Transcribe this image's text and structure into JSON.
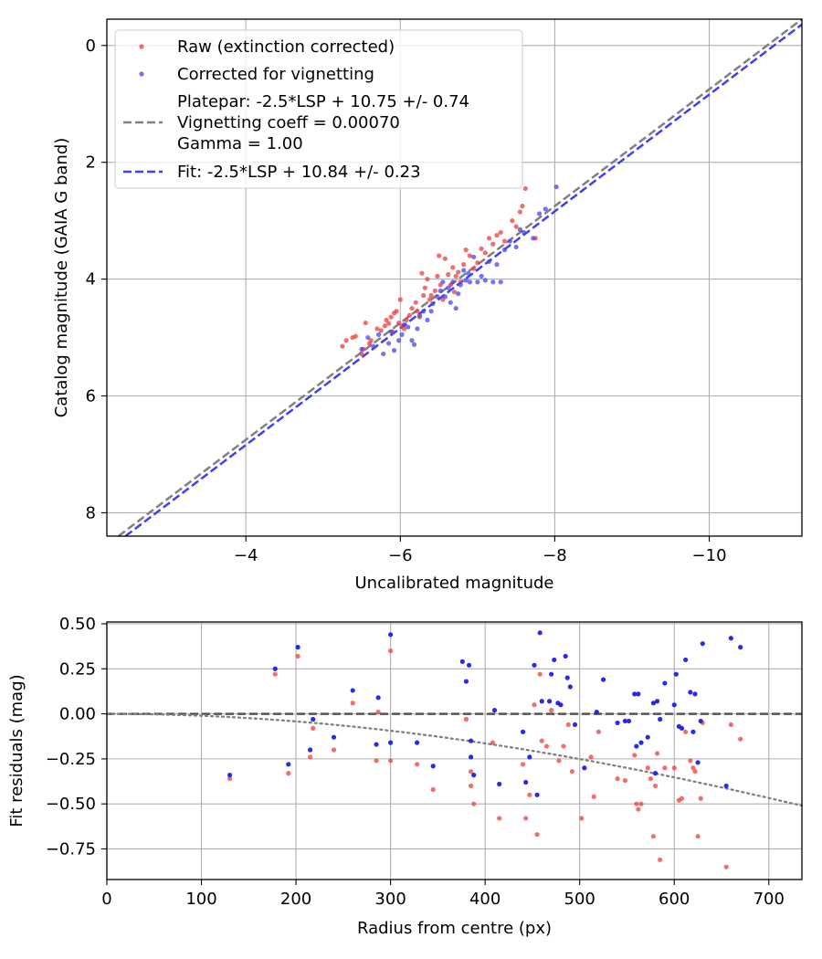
{
  "chart_data": [
    {
      "type": "scatter",
      "xlabel": "Uncalibrated magnitude",
      "ylabel": "Catalog magnitude (GAIA G band)",
      "xlim": [
        -2.2,
        -11.2
      ],
      "ylim": [
        8.4,
        -0.45
      ],
      "x_inverted": true,
      "y_inverted": true,
      "grid": true,
      "legend_position": "upper-left",
      "xticks": [
        -4,
        -6,
        -8,
        -10
      ],
      "yticks": [
        0,
        2,
        4,
        6,
        8
      ],
      "xtick_labels": [
        "−4",
        "−6",
        "−8",
        "−10"
      ],
      "ytick_labels": [
        "0",
        "2",
        "4",
        "6",
        "8"
      ],
      "legend": {
        "raw_label": "Raw (extinction corrected)",
        "corrected_label": "Corrected for vignetting",
        "platepar_line1": "Platepar: -2.5*LSP + 10.75 +/- 0.74",
        "platepar_line2": "Vignetting coeff = 0.00070",
        "platepar_line3": "Gamma = 1.00",
        "fit_label": "Fit: -2.5*LSP + 10.84 +/- 0.23"
      },
      "lines": [
        {
          "name": "Platepar",
          "slope": 1.0,
          "intercept": 10.75,
          "color": "#808080",
          "style": "dashed"
        },
        {
          "name": "Fit",
          "slope": 1.0,
          "intercept": 10.84,
          "color": "#3f3ff5",
          "style": "dashed"
        }
      ],
      "series": [
        {
          "name": "Raw (extinction corrected)",
          "color": "#f03c3c",
          "points": [
            [
              -5.25,
              5.15
            ],
            [
              -5.3,
              5.05
            ],
            [
              -5.38,
              5.0
            ],
            [
              -5.42,
              4.98
            ],
            [
              -5.5,
              5.28
            ],
            [
              -5.52,
              5.2
            ],
            [
              -5.55,
              4.75
            ],
            [
              -5.6,
              5.1
            ],
            [
              -5.62,
              5.05
            ],
            [
              -5.7,
              4.85
            ],
            [
              -5.75,
              4.88
            ],
            [
              -5.8,
              4.8
            ],
            [
              -5.82,
              4.7
            ],
            [
              -5.85,
              4.76
            ],
            [
              -5.88,
              4.65
            ],
            [
              -5.9,
              4.9
            ],
            [
              -5.92,
              4.58
            ],
            [
              -5.95,
              4.55
            ],
            [
              -5.98,
              4.75
            ],
            [
              -6.0,
              4.35
            ],
            [
              -6.02,
              4.8
            ],
            [
              -6.05,
              4.85
            ],
            [
              -6.08,
              4.7
            ],
            [
              -6.12,
              4.62
            ],
            [
              -6.15,
              4.5
            ],
            [
              -6.2,
              4.4
            ],
            [
              -6.22,
              4.55
            ],
            [
              -6.25,
              4.65
            ],
            [
              -6.28,
              3.9
            ],
            [
              -6.3,
              4.28
            ],
            [
              -6.32,
              4.15
            ],
            [
              -6.35,
              4.0
            ],
            [
              -6.38,
              4.35
            ],
            [
              -6.4,
              4.28
            ],
            [
              -6.45,
              4.2
            ],
            [
              -6.48,
              3.95
            ],
            [
              -6.5,
              3.6
            ],
            [
              -6.52,
              4.1
            ],
            [
              -6.55,
              4.35
            ],
            [
              -6.58,
              3.65
            ],
            [
              -6.62,
              3.92
            ],
            [
              -6.65,
              4.1
            ],
            [
              -6.68,
              3.8
            ],
            [
              -6.7,
              4.22
            ],
            [
              -6.72,
              3.95
            ],
            [
              -6.75,
              3.88
            ],
            [
              -6.78,
              4.05
            ],
            [
              -6.82,
              3.75
            ],
            [
              -6.85,
              3.5
            ],
            [
              -6.9,
              3.6
            ],
            [
              -6.95,
              3.82
            ],
            [
              -7.0,
              3.72
            ],
            [
              -7.05,
              3.48
            ],
            [
              -7.1,
              3.55
            ],
            [
              -7.15,
              3.3
            ],
            [
              -7.2,
              3.4
            ],
            [
              -7.25,
              3.25
            ],
            [
              -7.3,
              3.2
            ],
            [
              -7.35,
              3.35
            ],
            [
              -7.45,
              3.0
            ],
            [
              -7.5,
              3.1
            ],
            [
              -7.55,
              2.85
            ],
            [
              -7.58,
              2.75
            ],
            [
              -7.62,
              2.45
            ],
            [
              -7.75,
              3.3
            ]
          ]
        },
        {
          "name": "Corrected for vignetting",
          "color": "#4646f0",
          "points": [
            [
              -5.5,
              5.2
            ],
            [
              -5.58,
              5.0
            ],
            [
              -5.65,
              5.15
            ],
            [
              -5.72,
              4.95
            ],
            [
              -5.78,
              5.28
            ],
            [
              -5.85,
              5.1
            ],
            [
              -5.88,
              4.9
            ],
            [
              -5.92,
              5.22
            ],
            [
              -5.98,
              5.05
            ],
            [
              -6.02,
              4.95
            ],
            [
              -6.05,
              4.78
            ],
            [
              -6.1,
              4.82
            ],
            [
              -6.15,
              5.05
            ],
            [
              -6.18,
              5.12
            ],
            [
              -6.22,
              4.85
            ],
            [
              -6.25,
              4.62
            ],
            [
              -6.3,
              4.55
            ],
            [
              -6.35,
              4.7
            ],
            [
              -6.4,
              4.55
            ],
            [
              -6.42,
              4.42
            ],
            [
              -6.48,
              4.3
            ],
            [
              -6.52,
              4.2
            ],
            [
              -6.55,
              4.05
            ],
            [
              -6.58,
              4.3
            ],
            [
              -6.62,
              4.15
            ],
            [
              -6.65,
              4.4
            ],
            [
              -6.68,
              4.05
            ],
            [
              -6.72,
              4.5
            ],
            [
              -6.75,
              4.25
            ],
            [
              -6.78,
              4.1
            ],
            [
              -6.82,
              3.85
            ],
            [
              -6.85,
              4.02
            ],
            [
              -6.88,
              3.9
            ],
            [
              -6.9,
              4.05
            ],
            [
              -6.95,
              3.62
            ],
            [
              -7.0,
              4.05
            ],
            [
              -7.05,
              3.95
            ],
            [
              -7.1,
              4.02
            ],
            [
              -7.15,
              3.7
            ],
            [
              -7.2,
              4.05
            ],
            [
              -7.25,
              3.75
            ],
            [
              -7.3,
              4.05
            ],
            [
              -7.35,
              3.5
            ],
            [
              -7.42,
              3.35
            ],
            [
              -7.5,
              3.45
            ],
            [
              -7.55,
              3.15
            ],
            [
              -7.6,
              3.2
            ],
            [
              -7.72,
              3.3
            ],
            [
              -7.8,
              2.88
            ],
            [
              -7.88,
              2.8
            ],
            [
              -8.02,
              2.42
            ]
          ]
        }
      ]
    },
    {
      "type": "scatter",
      "xlabel": "Radius from centre (px)",
      "ylabel": "Fit residuals (mag)",
      "xlim": [
        0,
        735
      ],
      "ylim": [
        -0.92,
        0.51
      ],
      "grid": true,
      "xticks": [
        0,
        100,
        200,
        300,
        400,
        500,
        600,
        700
      ],
      "yticks": [
        0.5,
        0.25,
        0.0,
        -0.25,
        -0.5,
        -0.75
      ],
      "xtick_labels": [
        "0",
        "100",
        "200",
        "300",
        "400",
        "500",
        "600",
        "700"
      ],
      "ytick_labels": [
        "0.50",
        "0.25",
        "0.00",
        "−0.25",
        "−0.50",
        "−0.75"
      ],
      "zero_line": {
        "y": 0.0,
        "color": "#555555",
        "style": "dashed"
      },
      "vignetting_curve": {
        "coeff": 0.0007,
        "color": "#808080",
        "style": "dotted"
      },
      "series": [
        {
          "name": "Raw",
          "color": "#f03c3c",
          "points": [
            [
              130,
              -0.36
            ],
            [
              178,
              0.22
            ],
            [
              192,
              -0.33
            ],
            [
              202,
              0.32
            ],
            [
              215,
              -0.24
            ],
            [
              218,
              -0.08
            ],
            [
              240,
              -0.2
            ],
            [
              260,
              0.06
            ],
            [
              285,
              -0.26
            ],
            [
              287,
              0.01
            ],
            [
              300,
              0.35
            ],
            [
              300,
              -0.26
            ],
            [
              328,
              -0.28
            ],
            [
              345,
              -0.42
            ],
            [
              380,
              -0.03
            ],
            [
              385,
              -0.32
            ],
            [
              385,
              -0.4
            ],
            [
              388,
              -0.5
            ],
            [
              408,
              -0.16
            ],
            [
              415,
              -0.58
            ],
            [
              440,
              -0.28
            ],
            [
              443,
              -0.58
            ],
            [
              447,
              -0.45
            ],
            [
              452,
              0.05
            ],
            [
              455,
              -0.67
            ],
            [
              458,
              0.22
            ],
            [
              460,
              -0.15
            ],
            [
              465,
              -0.18
            ],
            [
              470,
              0.02
            ],
            [
              478,
              -0.26
            ],
            [
              483,
              -0.18
            ],
            [
              488,
              -0.06
            ],
            [
              492,
              -0.32
            ],
            [
              502,
              -0.58
            ],
            [
              512,
              -0.24
            ],
            [
              515,
              -0.46
            ],
            [
              520,
              -0.1
            ],
            [
              540,
              -0.36
            ],
            [
              548,
              -0.37
            ],
            [
              558,
              -0.23
            ],
            [
              560,
              -0.5
            ],
            [
              562,
              -0.53
            ],
            [
              565,
              -0.5
            ],
            [
              572,
              -0.3
            ],
            [
              575,
              -0.36
            ],
            [
              578,
              -0.68
            ],
            [
              580,
              -0.4
            ],
            [
              582,
              -0.22
            ],
            [
              585,
              -0.81
            ],
            [
              590,
              -0.3
            ],
            [
              600,
              -0.3
            ],
            [
              605,
              -0.48
            ],
            [
              608,
              -0.47
            ],
            [
              612,
              -0.1
            ],
            [
              617,
              -0.26
            ],
            [
              620,
              -0.3
            ],
            [
              622,
              -0.32
            ],
            [
              625,
              -0.68
            ],
            [
              628,
              -0.47
            ],
            [
              630,
              -0.05
            ],
            [
              655,
              -0.85
            ],
            [
              660,
              -0.06
            ],
            [
              670,
              -0.14
            ]
          ]
        },
        {
          "name": "Corrected",
          "color": "#1e1ef0",
          "points": [
            [
              130,
              -0.34
            ],
            [
              178,
              0.25
            ],
            [
              192,
              -0.28
            ],
            [
              202,
              0.37
            ],
            [
              215,
              -0.2
            ],
            [
              218,
              -0.03
            ],
            [
              240,
              -0.13
            ],
            [
              260,
              0.13
            ],
            [
              285,
              -0.17
            ],
            [
              287,
              0.09
            ],
            [
              300,
              0.44
            ],
            [
              300,
              -0.16
            ],
            [
              328,
              -0.16
            ],
            [
              345,
              -0.29
            ],
            [
              376,
              0.29
            ],
            [
              380,
              0.18
            ],
            [
              383,
              0.27
            ],
            [
              385,
              -0.15
            ],
            [
              385,
              -0.24
            ],
            [
              388,
              -0.34
            ],
            [
              410,
              0.02
            ],
            [
              415,
              -0.39
            ],
            [
              440,
              -0.1
            ],
            [
              443,
              -0.38
            ],
            [
              447,
              -0.24
            ],
            [
              452,
              0.27
            ],
            [
              455,
              -0.45
            ],
            [
              458,
              0.45
            ],
            [
              460,
              0.07
            ],
            [
              468,
              0.07
            ],
            [
              470,
              0.22
            ],
            [
              473,
              0.3
            ],
            [
              477,
              0.06
            ],
            [
              480,
              0.05
            ],
            [
              485,
              0.32
            ],
            [
              487,
              0.2
            ],
            [
              490,
              0.15
            ],
            [
              495,
              -0.06
            ],
            [
              505,
              -0.3
            ],
            [
              518,
              0.01
            ],
            [
              525,
              0.19
            ],
            [
              540,
              -0.05
            ],
            [
              548,
              -0.04
            ],
            [
              552,
              -0.04
            ],
            [
              558,
              0.11
            ],
            [
              560,
              -0.18
            ],
            [
              562,
              0.11
            ],
            [
              565,
              -0.16
            ],
            [
              572,
              -0.13
            ],
            [
              578,
              0.06
            ],
            [
              580,
              -0.33
            ],
            [
              582,
              0.07
            ],
            [
              585,
              -0.03
            ],
            [
              590,
              0.17
            ],
            [
              600,
              0.05
            ],
            [
              602,
              0.22
            ],
            [
              605,
              -0.07
            ],
            [
              608,
              -0.08
            ],
            [
              612,
              0.3
            ],
            [
              617,
              0.12
            ],
            [
              620,
              -0.1
            ],
            [
              622,
              0.11
            ],
            [
              625,
              -0.27
            ],
            [
              628,
              -0.04
            ],
            [
              630,
              0.39
            ],
            [
              655,
              -0.4
            ],
            [
              660,
              0.42
            ],
            [
              670,
              0.37
            ]
          ]
        }
      ]
    }
  ]
}
